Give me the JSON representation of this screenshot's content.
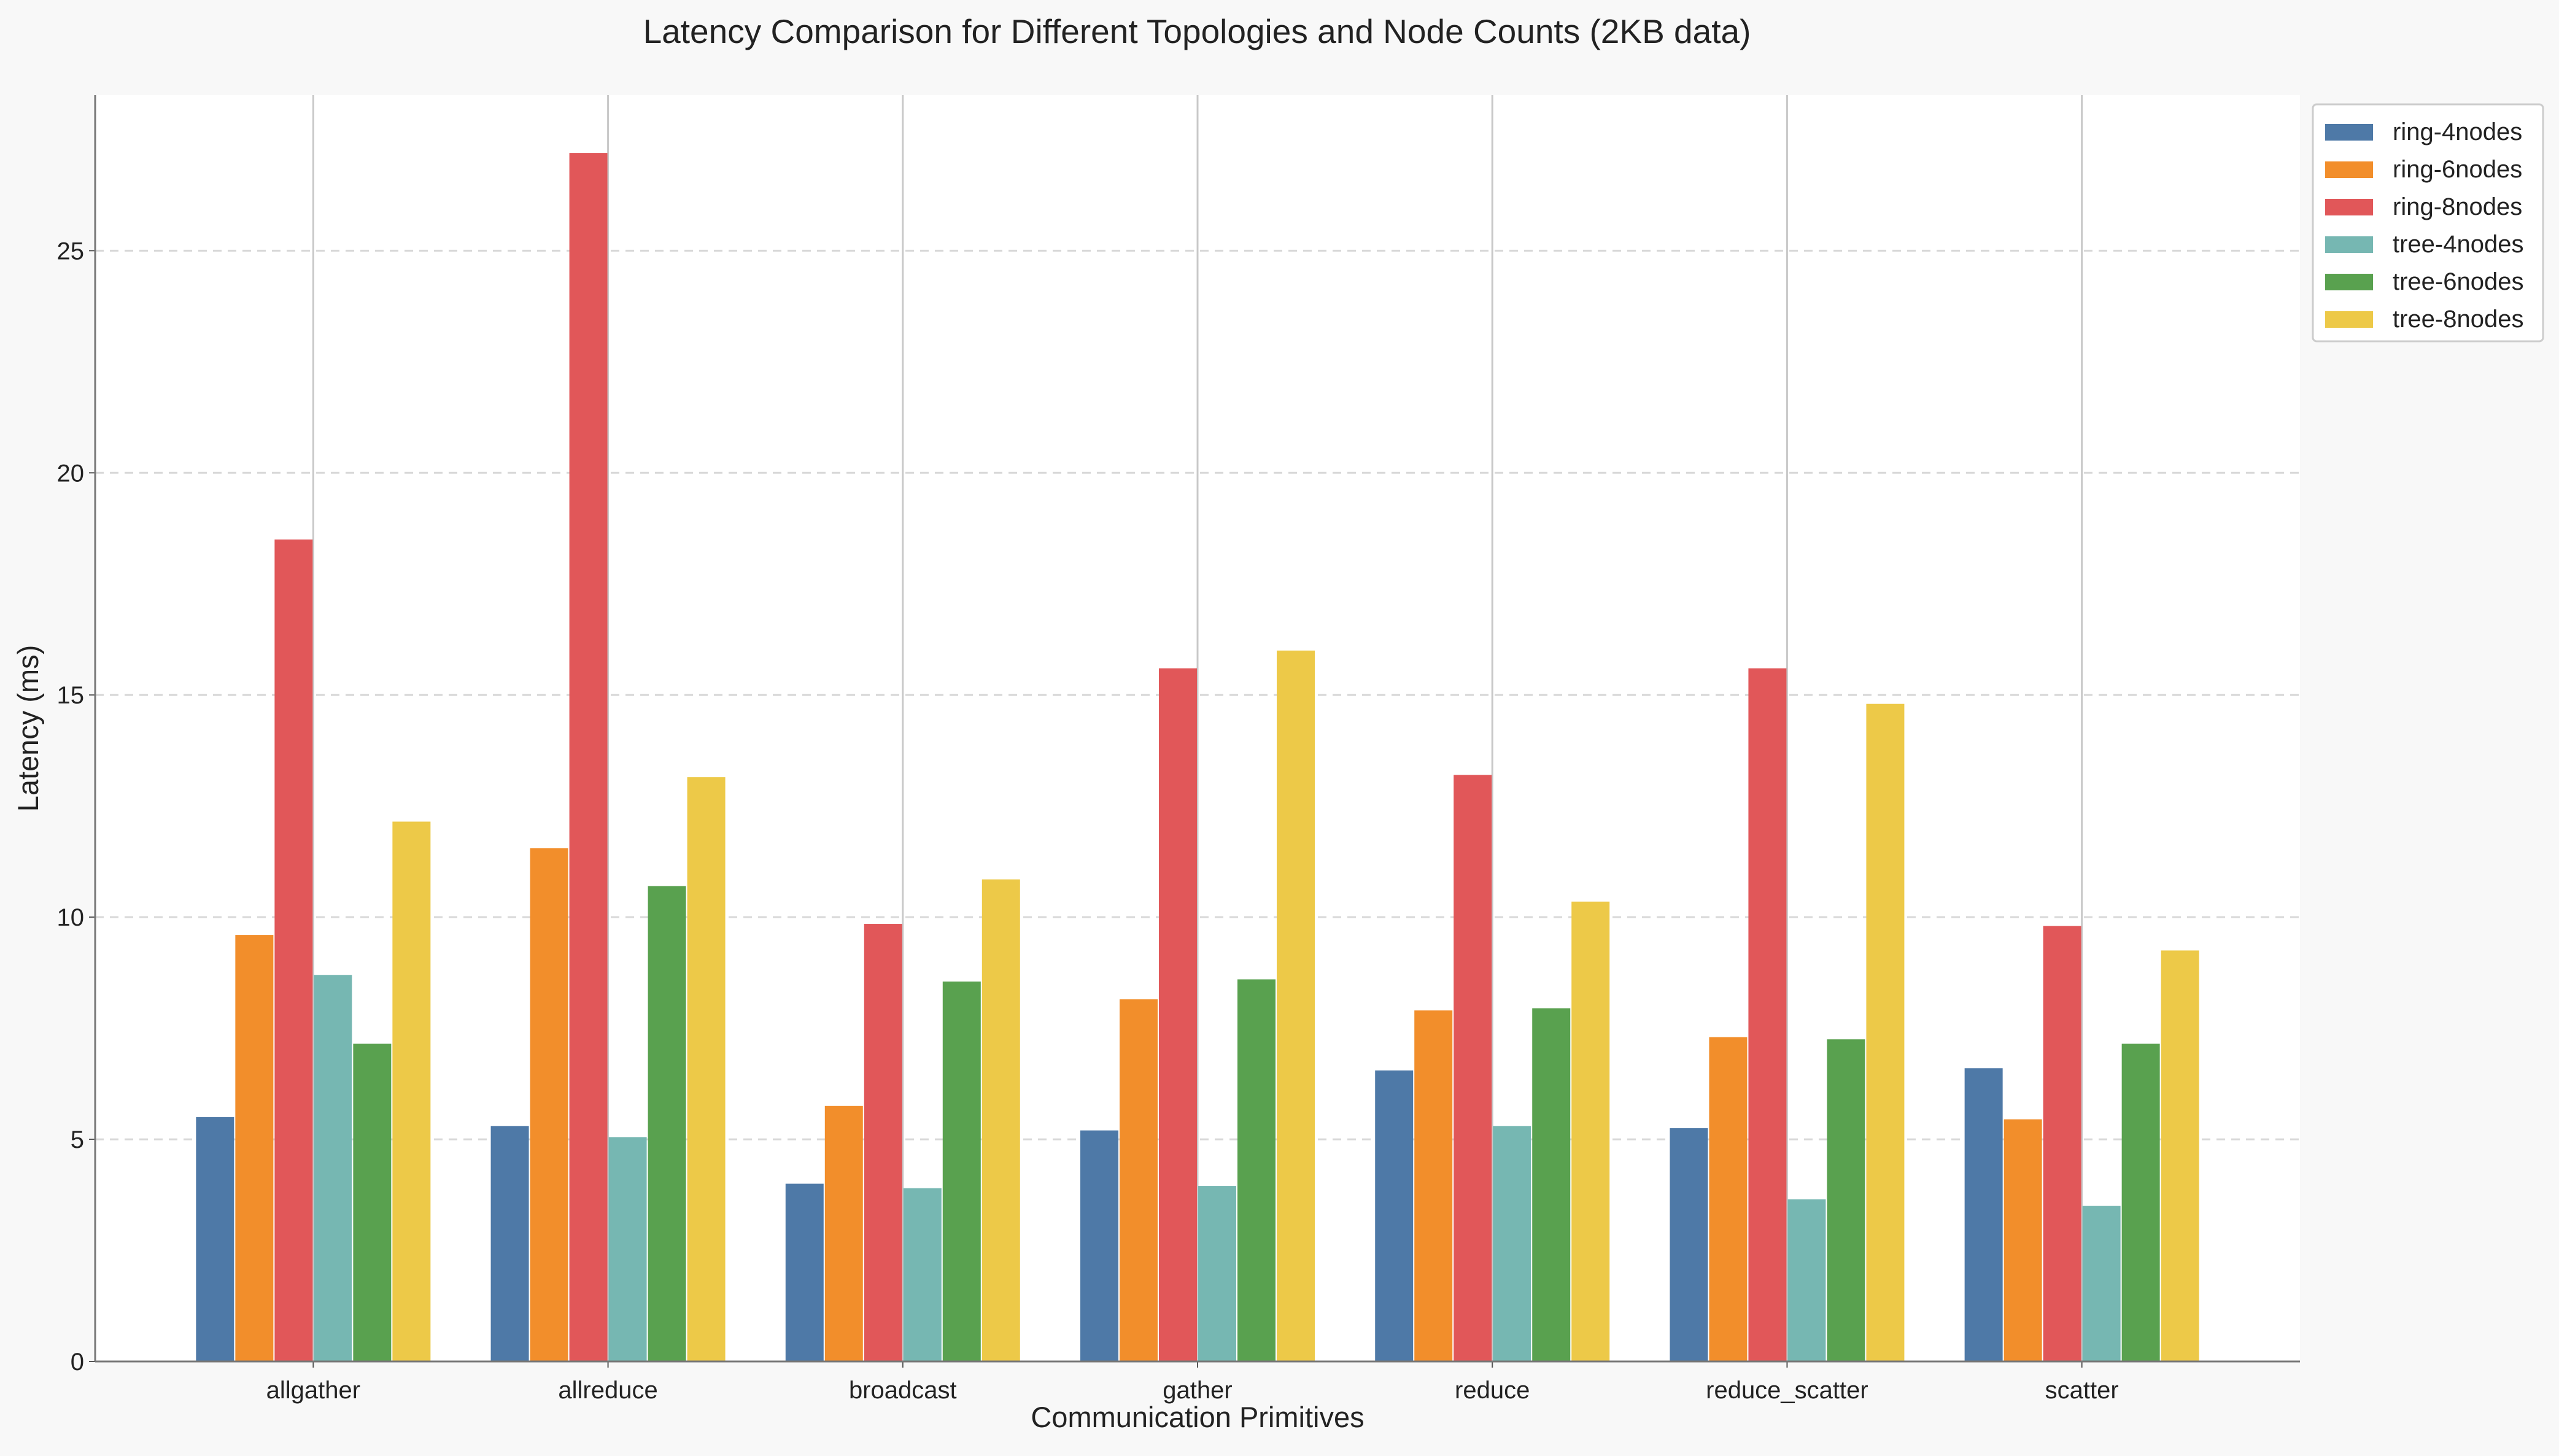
{
  "chart_data": {
    "type": "bar",
    "title": "Latency Comparison for Different Topologies and Node Counts (2KB data)",
    "xlabel": "Communication Primitives",
    "ylabel": "Latency (ms)",
    "ylim": [
      0,
      28.5
    ],
    "yticks": [
      0,
      5,
      10,
      15,
      20,
      25
    ],
    "grid": "y-dashed",
    "legend_position": "top-right-outside",
    "categories": [
      "allgather",
      "allreduce",
      "broadcast",
      "gather",
      "reduce",
      "reduce_scatter",
      "scatter"
    ],
    "series": [
      {
        "name": "ring-4nodes",
        "color": "#4e79a7",
        "values": [
          5.5,
          5.3,
          4.0,
          5.2,
          6.55,
          5.25,
          6.6
        ]
      },
      {
        "name": "ring-6nodes",
        "color": "#f28e2b",
        "values": [
          9.6,
          11.55,
          5.75,
          8.15,
          7.9,
          7.3,
          5.45
        ]
      },
      {
        "name": "ring-8nodes",
        "color": "#e15759",
        "values": [
          18.5,
          27.2,
          9.85,
          15.6,
          13.2,
          15.6,
          9.8
        ]
      },
      {
        "name": "tree-4nodes",
        "color": "#76b7b2",
        "values": [
          8.7,
          5.05,
          3.9,
          3.95,
          5.3,
          3.65,
          3.5
        ]
      },
      {
        "name": "tree-6nodes",
        "color": "#59a14f",
        "values": [
          7.15,
          10.7,
          8.55,
          8.6,
          7.95,
          7.25,
          7.15
        ]
      },
      {
        "name": "tree-8nodes",
        "color": "#edc948",
        "values": [
          12.15,
          13.15,
          10.85,
          16.0,
          10.35,
          14.8,
          9.25
        ]
      }
    ]
  }
}
